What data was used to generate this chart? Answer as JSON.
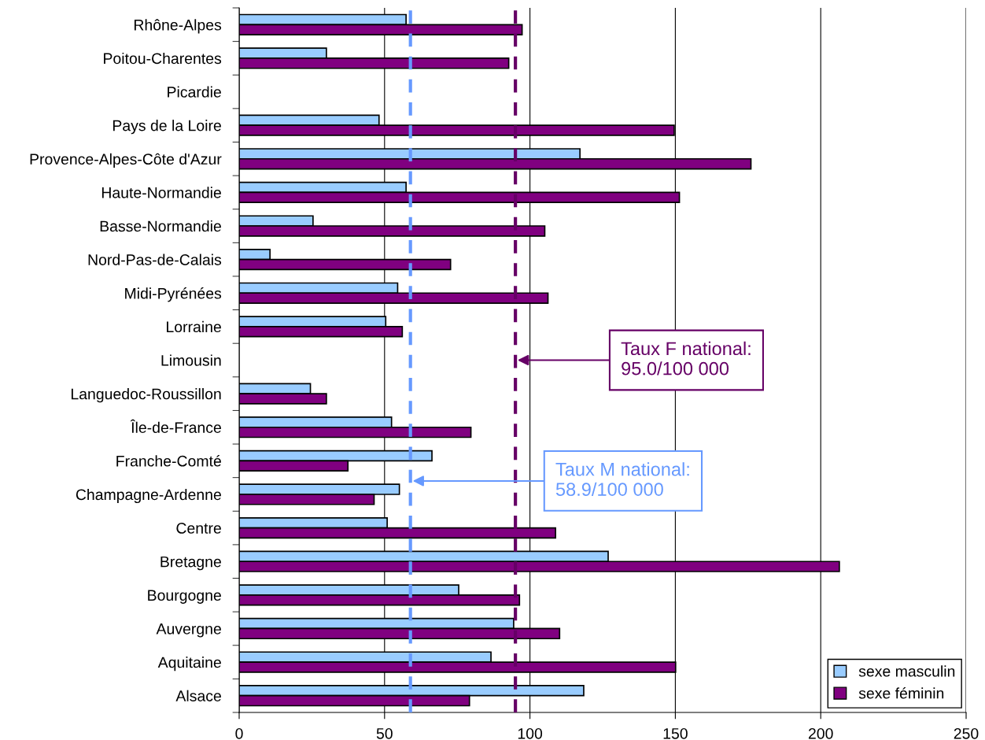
{
  "chart_data": {
    "type": "bar",
    "orientation": "horizontal",
    "categories": [
      "Rhône-Alpes",
      "Poitou-Charentes",
      "Picardie",
      "Pays de la Loire",
      "Provence-Alpes-Côte d'Azur",
      "Haute-Normandie",
      "Basse-Normandie",
      "Nord-Pas-de-Calais",
      "Midi-Pyrénées",
      "Lorraine",
      "Limousin",
      "Languedoc-Roussillon",
      "Île-de-France",
      "Franche-Comté",
      "Champagne-Ardenne",
      "Centre",
      "Bretagne",
      "Bourgogne",
      "Auvergne",
      "Aquitaine",
      "Alsace"
    ],
    "series": [
      {
        "name": "sexe masculin",
        "color": "#99ccff",
        "values": [
          57.4,
          30.0,
          null,
          48.1,
          117.2,
          57.4,
          25.4,
          10.6,
          54.5,
          50.4,
          null,
          24.5,
          52.4,
          66.3,
          55.1,
          50.9,
          126.9,
          75.5,
          94.4,
          86.6,
          118.5
        ]
      },
      {
        "name": "sexe féminin",
        "color": "#800080",
        "values": [
          97.3,
          92.7,
          null,
          149.6,
          176,
          151.4,
          105.1,
          72.7,
          106.2,
          56.1,
          null,
          30.0,
          79.7,
          37.4,
          46.4,
          108.8,
          206.4,
          96.4,
          110.2,
          150.1,
          79.2
        ]
      }
    ],
    "xlim": [
      0,
      250
    ],
    "xticks": [
      0,
      50,
      100,
      150,
      200,
      250
    ],
    "grid": "x",
    "legend": "bottom right",
    "ref_lines": [
      {
        "axis": "x",
        "value": 58.9,
        "label": "Taux M national:\n58.9/100 000",
        "color": "#6699ff",
        "line_style": "dashed"
      },
      {
        "axis": "x",
        "value": 95.0,
        "label": "Taux F national:\n95.0/100 000",
        "color": "#660066",
        "line_style": "dashed"
      }
    ]
  }
}
